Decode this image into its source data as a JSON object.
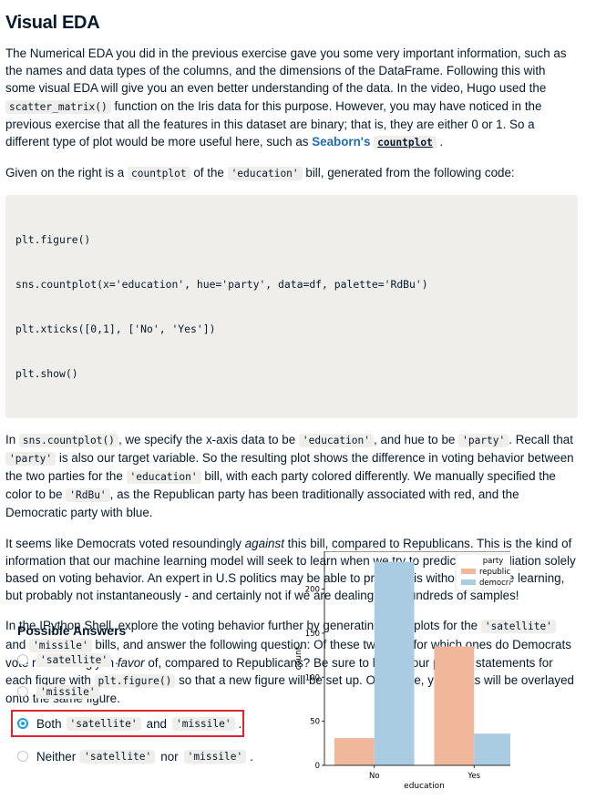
{
  "title": "Visual EDA",
  "para1": {
    "t1": "The Numerical EDA you did in the previous exercise gave you some very important information, such as the names and data types of the columns, and the dimensions of the DataFrame. Following this with some visual EDA will give you an even better understanding of the data. In the video, Hugo used the ",
    "c1": "scatter_matrix()",
    "t2": " function on the Iris data for this purpose. However, you may have noticed in the previous exercise that all the features in this dataset are binary; that is, they are either 0 or 1. So a different type of plot would be more useful here, such as ",
    "link": "Seaborn's",
    "linkcode": "countplot",
    "t3": "."
  },
  "para2": {
    "t1": "Given on the right is a ",
    "c1": "countplot",
    "t2": " of the ",
    "c2": "'education'",
    "t3": " bill, generated from the following code:"
  },
  "code_lines": [
    "plt.figure()",
    "sns.countplot(x='education', hue='party', data=df, palette='RdBu')",
    "plt.xticks([0,1], ['No', 'Yes'])",
    "plt.show()"
  ],
  "para3": {
    "t1": "In ",
    "c1": "sns.countplot()",
    "t2": ", we specify the x-axis data to be ",
    "c2": "'education'",
    "t3": ", and hue to be ",
    "c3": "'party'",
    "t4": ". Recall that ",
    "c4": "'party'",
    "t5": " is also our target variable. So the resulting plot shows the difference in voting behavior between the two parties for the ",
    "c5": "'education'",
    "t6": " bill, with each party colored differently. We manually specified the color to be ",
    "c6": "'RdBu'",
    "t7": ", as the Republican party has been traditionally associated with red, and the Democratic party with blue."
  },
  "para4": {
    "t1": "It seems like Democrats voted resoundingly ",
    "em": "against",
    "t2": " this bill, compared to Republicans. This is the kind of information that our machine learning model will seek to learn when we try to predict party affiliation solely based on voting behavior. An expert in U.S politics may be able to predict this without machine learning, but probably not instantaneously - and certainly not if we are dealing with hundreds of samples!"
  },
  "para5": {
    "t1": "In the IPython Shell, explore the voting behavior further by generating countplots for the ",
    "c1": "'satellite'",
    "t2": " and ",
    "c2": "'missile'",
    "t3": " bills, and answer the following question: Of these two bills, for which ones do Democrats vote resoundingly in ",
    "em": "favor",
    "t4": " of, compared to Republicans? Be sure to begin your plotting statements for each figure with ",
    "c3": "plt.figure()",
    "t5": " so that a new figure will be set up. Otherwise, your plots will be overlayed onto the same figure."
  },
  "answers": {
    "heading": "Possible Answers",
    "opt1": {
      "c1": "'satellite'",
      "end": "."
    },
    "opt2": {
      "c1": "'missile'",
      "end": "."
    },
    "opt3": {
      "pre": "Both",
      "c1": "'satellite'",
      "mid": "and",
      "c2": "'missile'",
      "end": "."
    },
    "opt4": {
      "pre": "Neither",
      "c1": "'satellite'",
      "mid": "nor",
      "c2": "'missile'",
      "end": "."
    },
    "selected": 3
  },
  "chart_data": {
    "type": "bar",
    "categories": [
      "No",
      "Yes"
    ],
    "series": [
      {
        "name": "republican",
        "values": [
          31,
          135
        ],
        "color": "#f0b79a"
      },
      {
        "name": "democrat",
        "values": [
          231,
          36
        ],
        "color": "#a9cce3"
      }
    ],
    "xlabel": "education",
    "ylabel": "count",
    "yticks": [
      0,
      50,
      100,
      150,
      200
    ],
    "ylim": [
      0,
      243
    ],
    "legend_title": "party",
    "legend_position": "top-right"
  }
}
